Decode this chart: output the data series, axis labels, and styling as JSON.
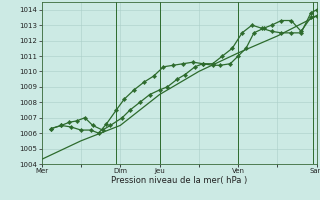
{
  "bg_color": "#cceae4",
  "grid_color": "#aacfc8",
  "line_color": "#2d6b2d",
  "xlabel": "Pression niveau de la mer( hPa )",
  "ylim": [
    1004,
    1014.5
  ],
  "yticks": [
    1004,
    1005,
    1006,
    1007,
    1008,
    1009,
    1010,
    1011,
    1012,
    1013,
    1014
  ],
  "xtick_labels": [
    "Mer",
    "",
    "Dim",
    "Jeu",
    "",
    "Ven",
    "",
    "Sam"
  ],
  "xtick_positions": [
    0,
    1,
    2,
    3,
    4,
    5,
    6,
    7
  ],
  "xlim": [
    0,
    7
  ],
  "series1_smooth": {
    "x": [
      0.0,
      1.0,
      2.0,
      3.0,
      4.0,
      5.0,
      6.0,
      7.0
    ],
    "y": [
      1004.3,
      1005.5,
      1006.5,
      1008.5,
      1010.0,
      1011.2,
      1012.3,
      1013.6
    ]
  },
  "series2": {
    "x": [
      0.25,
      0.5,
      0.7,
      0.9,
      1.1,
      1.3,
      1.55,
      1.75,
      2.05,
      2.25,
      2.5,
      2.75,
      3.0,
      3.2,
      3.45,
      3.65,
      3.9,
      4.1,
      4.35,
      4.55,
      4.8,
      5.0,
      5.2,
      5.4,
      5.65,
      5.85,
      6.1,
      6.35,
      6.6,
      6.85,
      7.0
    ],
    "y": [
      1006.3,
      1006.5,
      1006.7,
      1006.8,
      1007.0,
      1006.5,
      1006.2,
      1006.5,
      1007.0,
      1007.5,
      1008.0,
      1008.5,
      1008.8,
      1009.0,
      1009.5,
      1009.8,
      1010.3,
      1010.5,
      1010.4,
      1010.4,
      1010.5,
      1011.0,
      1011.5,
      1012.5,
      1012.8,
      1013.0,
      1013.3,
      1013.3,
      1012.6,
      1013.5,
      1013.6
    ]
  },
  "series3": {
    "x": [
      0.25,
      0.5,
      0.75,
      1.0,
      1.25,
      1.45,
      1.65,
      1.9,
      2.1,
      2.35,
      2.6,
      2.85,
      3.1,
      3.35,
      3.6,
      3.85,
      4.1,
      4.35,
      4.6,
      4.85,
      5.1,
      5.35,
      5.6,
      5.85,
      6.1,
      6.35,
      6.6,
      6.85,
      7.0
    ],
    "y": [
      1006.3,
      1006.5,
      1006.4,
      1006.2,
      1006.2,
      1006.0,
      1006.6,
      1007.5,
      1008.2,
      1008.8,
      1009.3,
      1009.7,
      1010.3,
      1010.4,
      1010.5,
      1010.6,
      1010.5,
      1010.5,
      1011.0,
      1011.5,
      1012.5,
      1013.0,
      1012.8,
      1012.6,
      1012.5,
      1012.5,
      1012.5,
      1013.8,
      1014.0
    ]
  },
  "vlines_x": [
    1.9,
    3.0,
    5.0,
    6.9
  ],
  "figsize": [
    3.2,
    2.0
  ],
  "dpi": 100
}
